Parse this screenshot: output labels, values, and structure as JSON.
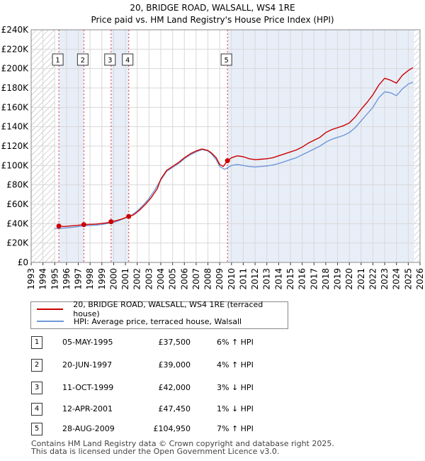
{
  "title_line1": "20, BRIDGE ROAD, WALSALL, WS4 1RE",
  "title_line2": "Price paid vs. HM Land Registry's House Price Index (HPI)",
  "chart_data": {
    "type": "line",
    "xlim": [
      1993,
      2026
    ],
    "ylim": [
      0,
      240000
    ],
    "x_ticks": [
      "1993",
      "1994",
      "1995",
      "1996",
      "1997",
      "1998",
      "1999",
      "2000",
      "2001",
      "2002",
      "2003",
      "2004",
      "2005",
      "2006",
      "2007",
      "2008",
      "2009",
      "2010",
      "2011",
      "2012",
      "2013",
      "2014",
      "2015",
      "2016",
      "2017",
      "2018",
      "2019",
      "2020",
      "2021",
      "2022",
      "2023",
      "2024",
      "2025",
      "2026"
    ],
    "y_ticks": [
      {
        "value": 0,
        "label": "£0"
      },
      {
        "value": 20000,
        "label": "£20K"
      },
      {
        "value": 40000,
        "label": "£40K"
      },
      {
        "value": 60000,
        "label": "£60K"
      },
      {
        "value": 80000,
        "label": "£80K"
      },
      {
        "value": 100000,
        "label": "£100K"
      },
      {
        "value": 120000,
        "label": "£120K"
      },
      {
        "value": 140000,
        "label": "£140K"
      },
      {
        "value": 160000,
        "label": "£160K"
      },
      {
        "value": 180000,
        "label": "£180K"
      },
      {
        "value": 200000,
        "label": "£200K"
      },
      {
        "value": 220000,
        "label": "£220K"
      },
      {
        "value": 240000,
        "label": "£240K"
      }
    ],
    "hatched_before": 1995.0,
    "hatched_after": 2025.5,
    "shaded_periods": [
      [
        1995.35,
        1997.47
      ],
      [
        1999.78,
        2001.28
      ],
      [
        2009.66,
        2025.5
      ]
    ],
    "series": [
      {
        "name": "20, BRIDGE ROAD, WALSALL, WS4 1RE (terraced house)",
        "color": "#cc0000",
        "points": [
          [
            1995.35,
            37500
          ],
          [
            1995.8,
            37000
          ],
          [
            1996.3,
            37600
          ],
          [
            1996.9,
            38200
          ],
          [
            1997.47,
            39000
          ],
          [
            1998.0,
            39300
          ],
          [
            1998.5,
            39600
          ],
          [
            1999.0,
            40200
          ],
          [
            1999.5,
            41000
          ],
          [
            1999.78,
            42000
          ],
          [
            2000.2,
            43000
          ],
          [
            2000.7,
            44800
          ],
          [
            2001.28,
            47450
          ],
          [
            2001.7,
            49000
          ],
          [
            2002.2,
            54000
          ],
          [
            2002.7,
            60000
          ],
          [
            2003.2,
            67000
          ],
          [
            2003.7,
            76000
          ],
          [
            2004.0,
            86000
          ],
          [
            2004.5,
            95000
          ],
          [
            2005.0,
            99000
          ],
          [
            2005.5,
            103000
          ],
          [
            2006.0,
            108000
          ],
          [
            2006.5,
            112000
          ],
          [
            2007.0,
            115000
          ],
          [
            2007.5,
            117000
          ],
          [
            2008.0,
            115500
          ],
          [
            2008.3,
            113000
          ],
          [
            2008.7,
            108000
          ],
          [
            2009.0,
            101000
          ],
          [
            2009.3,
            99000
          ],
          [
            2009.66,
            104950
          ],
          [
            2010.0,
            108000
          ],
          [
            2010.5,
            110000
          ],
          [
            2011.0,
            109000
          ],
          [
            2011.5,
            107000
          ],
          [
            2012.0,
            106000
          ],
          [
            2012.5,
            106500
          ],
          [
            2013.0,
            107000
          ],
          [
            2013.5,
            108000
          ],
          [
            2014.0,
            110000
          ],
          [
            2014.5,
            112000
          ],
          [
            2015.0,
            114000
          ],
          [
            2015.5,
            116000
          ],
          [
            2016.0,
            119000
          ],
          [
            2016.5,
            123000
          ],
          [
            2017.0,
            126000
          ],
          [
            2017.5,
            129000
          ],
          [
            2018.0,
            134000
          ],
          [
            2018.5,
            137000
          ],
          [
            2019.0,
            139000
          ],
          [
            2019.5,
            141000
          ],
          [
            2020.0,
            144000
          ],
          [
            2020.5,
            150000
          ],
          [
            2021.0,
            158000
          ],
          [
            2021.5,
            165000
          ],
          [
            2022.0,
            173000
          ],
          [
            2022.5,
            183000
          ],
          [
            2023.0,
            190000
          ],
          [
            2023.5,
            188000
          ],
          [
            2024.0,
            185000
          ],
          [
            2024.5,
            193000
          ],
          [
            2025.0,
            198000
          ],
          [
            2025.4,
            201000
          ]
        ]
      },
      {
        "name": "HPI: Average price, terraced house, Walsall",
        "color": "#6f98d8",
        "points": [
          [
            1995.0,
            35000
          ],
          [
            1995.5,
            35200
          ],
          [
            1996.0,
            35600
          ],
          [
            1996.5,
            36200
          ],
          [
            1997.0,
            37000
          ],
          [
            1997.5,
            37600
          ],
          [
            1998.0,
            38000
          ],
          [
            1998.5,
            38500
          ],
          [
            1999.0,
            39200
          ],
          [
            1999.5,
            40200
          ],
          [
            2000.0,
            41200
          ],
          [
            2000.5,
            43500
          ],
          [
            2001.0,
            46000
          ],
          [
            2001.5,
            48500
          ],
          [
            2002.0,
            53000
          ],
          [
            2002.5,
            59000
          ],
          [
            2003.0,
            66000
          ],
          [
            2003.5,
            75000
          ],
          [
            2004.0,
            85000
          ],
          [
            2004.5,
            94000
          ],
          [
            2005.0,
            98000
          ],
          [
            2005.5,
            102000
          ],
          [
            2006.0,
            107000
          ],
          [
            2006.5,
            111000
          ],
          [
            2007.0,
            114000
          ],
          [
            2007.5,
            116500
          ],
          [
            2008.0,
            115000
          ],
          [
            2008.3,
            112000
          ],
          [
            2008.7,
            106000
          ],
          [
            2009.0,
            99000
          ],
          [
            2009.4,
            96000
          ],
          [
            2009.7,
            98000
          ],
          [
            2010.0,
            100000
          ],
          [
            2010.5,
            101000
          ],
          [
            2011.0,
            100000
          ],
          [
            2011.5,
            99000
          ],
          [
            2012.0,
            98500
          ],
          [
            2012.5,
            99000
          ],
          [
            2013.0,
            99500
          ],
          [
            2013.5,
            100500
          ],
          [
            2014.0,
            102000
          ],
          [
            2014.5,
            104000
          ],
          [
            2015.0,
            106000
          ],
          [
            2015.5,
            108000
          ],
          [
            2016.0,
            111000
          ],
          [
            2016.5,
            114000
          ],
          [
            2017.0,
            117000
          ],
          [
            2017.5,
            120000
          ],
          [
            2018.0,
            124000
          ],
          [
            2018.5,
            127000
          ],
          [
            2019.0,
            129000
          ],
          [
            2019.5,
            131000
          ],
          [
            2020.0,
            134000
          ],
          [
            2020.5,
            139000
          ],
          [
            2021.0,
            146000
          ],
          [
            2021.5,
            153000
          ],
          [
            2022.0,
            160000
          ],
          [
            2022.5,
            170000
          ],
          [
            2023.0,
            176000
          ],
          [
            2023.5,
            175000
          ],
          [
            2024.0,
            172000
          ],
          [
            2024.5,
            179000
          ],
          [
            2025.0,
            184000
          ],
          [
            2025.4,
            186000
          ]
        ]
      }
    ],
    "markers": [
      {
        "label": "1",
        "x": 1995.35,
        "y": 37500
      },
      {
        "label": "2",
        "x": 1997.47,
        "y": 39000
      },
      {
        "label": "3",
        "x": 1999.78,
        "y": 42000
      },
      {
        "label": "4",
        "x": 2001.28,
        "y": 47450
      },
      {
        "label": "5",
        "x": 2009.66,
        "y": 104950
      }
    ]
  },
  "legend": {
    "property_label": "20, BRIDGE ROAD, WALSALL, WS4 1RE (terraced house)",
    "hpi_label": "HPI: Average price, terraced house, Walsall"
  },
  "sales": [
    {
      "num": "1",
      "date": "05-MAY-1995",
      "price": "£37,500",
      "hpi": "6% ↑ HPI"
    },
    {
      "num": "2",
      "date": "20-JUN-1997",
      "price": "£39,000",
      "hpi": "4% ↑ HPI"
    },
    {
      "num": "3",
      "date": "11-OCT-1999",
      "price": "£42,000",
      "hpi": "3% ↓ HPI"
    },
    {
      "num": "4",
      "date": "12-APR-2001",
      "price": "£47,450",
      "hpi": "1% ↓ HPI"
    },
    {
      "num": "5",
      "date": "28-AUG-2009",
      "price": "£104,950",
      "hpi": "7% ↑ HPI"
    }
  ],
  "footer_line1": "Contains HM Land Registry data © Crown copyright and database right 2025.",
  "footer_line2": "This data is licensed under the Open Government Licence v3.0."
}
